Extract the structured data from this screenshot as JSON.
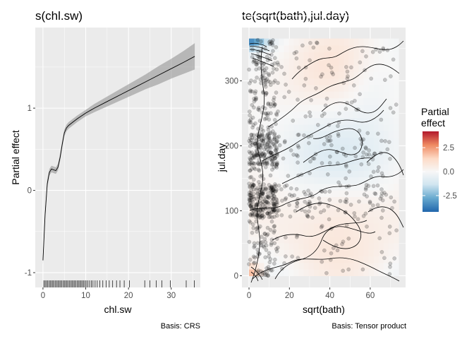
{
  "chart_data": [
    {
      "type": "line",
      "title": "s(chl.sw)",
      "xlabel": "chl.sw",
      "ylabel": "Partial effect",
      "caption": "Basis: CRS",
      "xlim": [
        -1.8,
        36.8
      ],
      "ylim": [
        -1.18,
        1.98
      ],
      "xticks": [
        0,
        10,
        20,
        30
      ],
      "yticks": [
        -1,
        0,
        1
      ],
      "xtick_labels": [
        "0",
        "10",
        "20",
        "30"
      ],
      "ytick_labels": [
        "-1",
        "0",
        "1"
      ],
      "grid": true,
      "series": [
        {
          "x": [
            0,
            0.5,
            1,
            1.5,
            2,
            2.5,
            3,
            3.5,
            4,
            4.5,
            5,
            5.5,
            6,
            7,
            8,
            10,
            12,
            15,
            18,
            21,
            24,
            27,
            30,
            33,
            35.5
          ],
          "y": [
            -0.85,
            -0.3,
            0.08,
            0.22,
            0.26,
            0.25,
            0.24,
            0.28,
            0.4,
            0.56,
            0.7,
            0.76,
            0.79,
            0.83,
            0.87,
            0.94,
            1.0,
            1.08,
            1.16,
            1.24,
            1.32,
            1.4,
            1.48,
            1.56,
            1.63
          ],
          "lower": [
            -0.9,
            -0.36,
            0.03,
            0.18,
            0.22,
            0.21,
            0.2,
            0.24,
            0.36,
            0.52,
            0.66,
            0.72,
            0.75,
            0.79,
            0.83,
            0.9,
            0.95,
            1.02,
            1.09,
            1.16,
            1.23,
            1.29,
            1.36,
            1.42,
            1.47
          ],
          "upper": [
            -0.8,
            -0.24,
            0.13,
            0.26,
            0.3,
            0.29,
            0.28,
            0.32,
            0.44,
            0.6,
            0.74,
            0.8,
            0.83,
            0.87,
            0.91,
            0.98,
            1.05,
            1.14,
            1.23,
            1.32,
            1.41,
            1.51,
            1.6,
            1.7,
            1.79
          ]
        }
      ],
      "rug": [
        0.2,
        0.5,
        0.8,
        1.1,
        1.4,
        1.7,
        2.0,
        2.3,
        2.6,
        2.9,
        3.2,
        3.5,
        3.8,
        4.1,
        4.4,
        4.7,
        5.0,
        5.3,
        5.6,
        5.9,
        6.2,
        6.5,
        6.8,
        7.1,
        7.4,
        7.7,
        8.0,
        8.3,
        8.6,
        8.9,
        9.2,
        9.5,
        9.8,
        10.1,
        10.5,
        10.9,
        11.3,
        11.7,
        12.2,
        12.7,
        13.3,
        14.0,
        14.8,
        15.5,
        16.3,
        17.2,
        18.0,
        19.0,
        20.2,
        23.8,
        25.0,
        26.5,
        27.8,
        29.8,
        33.5,
        35.4
      ]
    },
    {
      "type": "heatmap",
      "title": "te(sqrt(bath),jul.day)",
      "xlabel": "sqrt(bath)",
      "ylabel": "jul.day",
      "caption": "Basis: Tensor product",
      "xlim": [
        -3.5,
        77.5
      ],
      "ylim": [
        -18,
        382
      ],
      "xticks": [
        0,
        20,
        40,
        60
      ],
      "yticks": [
        0,
        100,
        200,
        300
      ],
      "xtick_labels": [
        "0",
        "20",
        "40",
        "60"
      ],
      "ytick_labels": [
        "0",
        "100",
        "200",
        "300"
      ],
      "grid": true,
      "legend": {
        "title": "Partial effect",
        "title_lines": [
          "Partial",
          "effect"
        ],
        "placement": "right",
        "range": [
          -4.2,
          4.2
        ],
        "breaks": [
          2.5,
          0.0,
          -2.5
        ],
        "break_labels": [
          "2.5",
          "0.0",
          "-2.5"
        ],
        "colors": [
          "#b2182b",
          "#ef8a62",
          "#fddbc7",
          "#f7f7f7",
          "#d1e5f0",
          "#67a9cf",
          "#2166ac"
        ]
      }
    }
  ]
}
